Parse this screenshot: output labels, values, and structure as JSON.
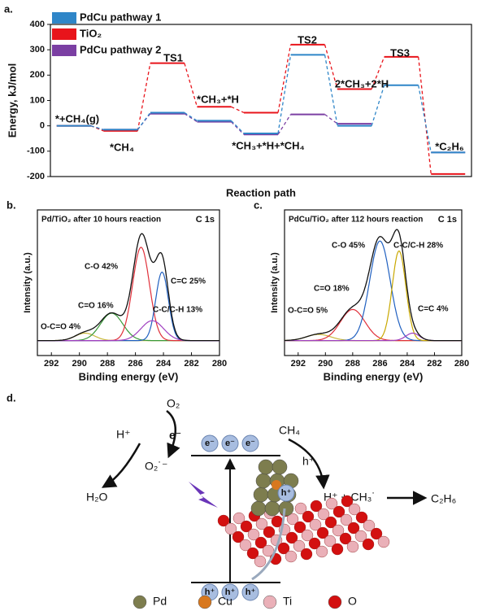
{
  "chart_data": [
    {
      "type": "energy-profile",
      "panel": "a.",
      "ylabel": "Energy, kJ/mol",
      "xlabel": "Reaction path",
      "ylim": [
        -200,
        400
      ],
      "yticks": [
        -200,
        -100,
        0,
        100,
        200,
        300,
        400
      ],
      "categories": [
        "*+CH₄(g)",
        "*CH₄",
        "TS1",
        "*CH₃+*H",
        "*CH₃+*H+*CH₄",
        "TS2",
        "2*CH₃+2*H",
        "TS3",
        "*C₂H₆"
      ],
      "series": [
        {
          "name": "PdCu pathway 1",
          "color": "#2f86c8",
          "values": [
            0,
            -15,
            52,
            20,
            -30,
            280,
            0,
            160,
            -105
          ]
        },
        {
          "name": "TiO₂",
          "color": "#e8141b",
          "values": [
            0,
            -20,
            247,
            75,
            52,
            320,
            145,
            272,
            -190
          ]
        },
        {
          "name": "PdCu pathway 2",
          "color": "#7b3fa3",
          "values": [
            0,
            -15,
            48,
            16,
            -34,
            45,
            8,
            null,
            -105
          ]
        }
      ]
    },
    {
      "type": "xps",
      "panel": "b.",
      "title": "Pd/TiO₂ after 10 hours reaction",
      "tag": "C 1s",
      "xlabel": "Binding energy (eV)",
      "ylabel": "Intensity (a.u.)",
      "xlim": [
        293,
        280
      ],
      "xticks": [
        292,
        290,
        288,
        286,
        284,
        282,
        280
      ],
      "ylim": [
        -0.12,
        1.05
      ],
      "peaks": [
        {
          "label": "O-C=O 4%",
          "color": "#c9b83a",
          "center": 289.6,
          "height": 0.06,
          "sigma": 0.7
        },
        {
          "label": "C=O 16%",
          "color": "#3a9a3a",
          "center": 287.7,
          "height": 0.22,
          "sigma": 0.8
        },
        {
          "label": "C-O 42%",
          "color": "#e0303a",
          "center": 285.6,
          "height": 0.75,
          "sigma": 0.6
        },
        {
          "label": "C=C 25%",
          "color": "#2060c0",
          "center": 284.1,
          "height": 0.55,
          "sigma": 0.45
        },
        {
          "label": "C-C/C-H 13%",
          "color": "#a040c0",
          "center": 284.8,
          "height": 0.16,
          "sigma": 0.8
        }
      ]
    },
    {
      "type": "xps",
      "panel": "c.",
      "title": "PdCu/TiO₂ after 112 hours reaction",
      "tag": "C 1s",
      "xlabel": "Binding energy (eV)",
      "ylabel": "Intensity (a.u.)",
      "xlim": [
        293,
        280
      ],
      "xticks": [
        292,
        290,
        288,
        286,
        284,
        282,
        280
      ],
      "ylim": [
        -0.12,
        1.05
      ],
      "peaks": [
        {
          "label": "O-C=O 5%",
          "color": "#c9b83a",
          "center": 290.5,
          "height": 0.05,
          "sigma": 0.9
        },
        {
          "label": "C=O 18%",
          "color": "#e0303a",
          "center": 288.0,
          "height": 0.25,
          "sigma": 0.9
        },
        {
          "label": "C-O 45%",
          "color": "#2060c0",
          "center": 286.0,
          "height": 0.8,
          "sigma": 0.75
        },
        {
          "label": "C-C/C-H 28%",
          "color": "#c9a800",
          "center": 284.6,
          "height": 0.72,
          "sigma": 0.5
        },
        {
          "label": "C=C 4%",
          "color": "#a040c0",
          "center": 283.6,
          "height": 0.06,
          "sigma": 0.5
        }
      ]
    }
  ],
  "diagram": {
    "panel": "d.",
    "o2": "O₂",
    "e": "e⁻",
    "o2minus": "O₂˙⁻",
    "hplus": "H⁺",
    "h2o": "H₂O",
    "ch4": "CH₄",
    "hole": "h⁺",
    "products": "H⁺ + CH₃˙",
    "c2h6": "C₂H₆",
    "electrons": [
      "e⁻",
      "e⁻",
      "e⁻"
    ],
    "holes": [
      "h⁺",
      "h⁺",
      "h⁺"
    ],
    "cluster_hole": "h⁺",
    "legend": [
      {
        "name": "Pd",
        "color": "#7d7d4e"
      },
      {
        "name": "Cu",
        "color": "#d8781e"
      },
      {
        "name": "Ti",
        "color": "#eab0b8"
      },
      {
        "name": "O",
        "color": "#d31010"
      }
    ]
  }
}
